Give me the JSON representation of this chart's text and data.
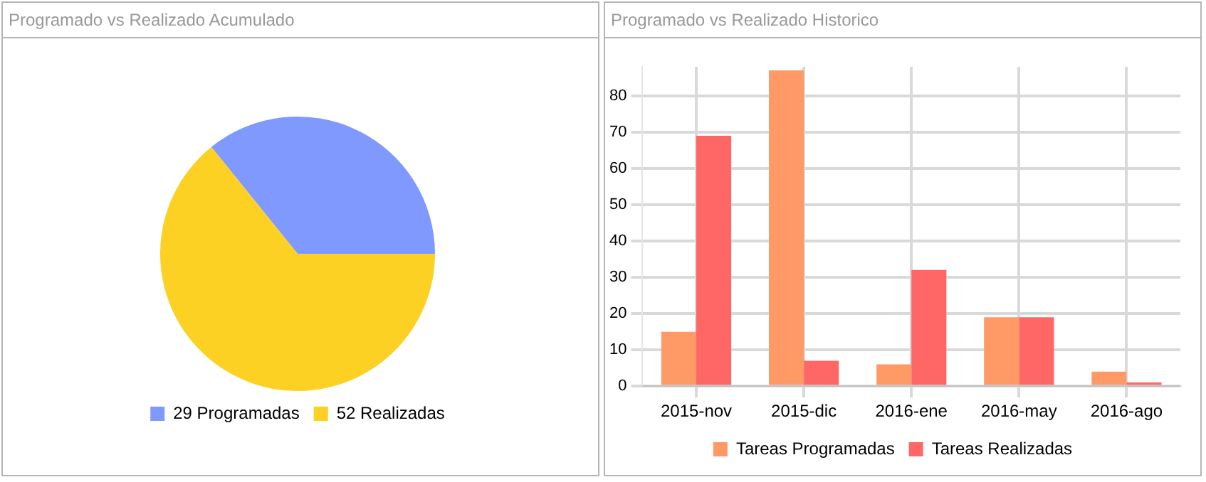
{
  "chart_data": [
    {
      "type": "pie",
      "title": "Programado vs Realizado Acumulado",
      "categories": [
        "29 Programadas",
        "52 Realizadas"
      ],
      "values": [
        29,
        52
      ],
      "colors": [
        "#8099ff",
        "#fcd124"
      ],
      "legend": "bottom"
    },
    {
      "type": "bar",
      "title": "Programado vs Realizado Historico",
      "categories": [
        "2015-nov",
        "2015-dic",
        "2016-ene",
        "2016-may",
        "2016-ago"
      ],
      "series": [
        {
          "name": "Tareas Programadas",
          "color": "#ff9966",
          "values": [
            15,
            87,
            6,
            19,
            4
          ]
        },
        {
          "name": "Tareas Realizadas",
          "color": "#ff6666",
          "values": [
            69,
            7,
            32,
            19,
            1
          ]
        }
      ],
      "ylim": [
        0,
        88
      ],
      "yticks": [
        0,
        10,
        20,
        30,
        40,
        50,
        60,
        70,
        80
      ],
      "grid": true,
      "legend": "bottom"
    }
  ]
}
